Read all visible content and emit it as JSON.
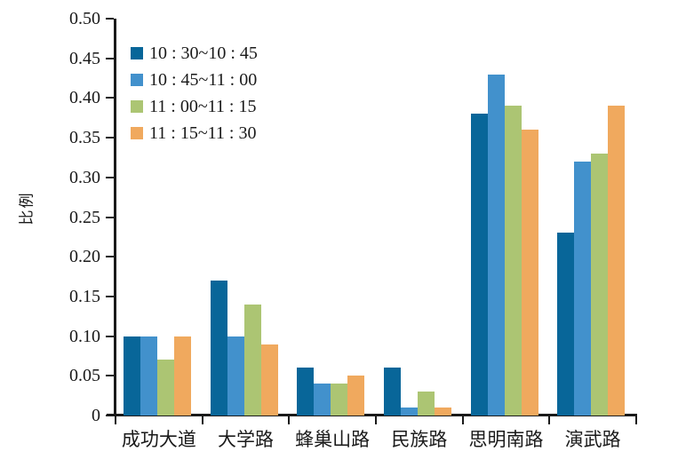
{
  "chart_data": {
    "type": "bar",
    "title": "",
    "xlabel": "",
    "ylabel": "比例",
    "categories": [
      "成功大道",
      "大学路",
      "蜂巢山路",
      "民族路",
      "思明南路",
      "演武路"
    ],
    "series": [
      {
        "name": "10 : 30~10 : 45",
        "color": "#086699",
        "values": [
          0.1,
          0.17,
          0.06,
          0.06,
          0.38,
          0.23
        ]
      },
      {
        "name": "10 : 45~11 : 00",
        "color": "#4291CC",
        "values": [
          0.1,
          0.1,
          0.04,
          0.01,
          0.43,
          0.32
        ]
      },
      {
        "name": "11 : 00~11 : 15",
        "color": "#ACC573",
        "values": [
          0.07,
          0.14,
          0.04,
          0.03,
          0.39,
          0.33
        ]
      },
      {
        "name": "11 : 15~11 : 30",
        "color": "#F0A95E",
        "values": [
          0.1,
          0.09,
          0.05,
          0.01,
          0.36,
          0.39
        ]
      }
    ],
    "ylim": [
      0,
      0.5
    ],
    "yticks": [
      0,
      0.05,
      0.1,
      0.15,
      0.2,
      0.25,
      0.3,
      0.35,
      0.4,
      0.45,
      0.5
    ],
    "ytick_labels": [
      "0",
      "0.05",
      "0.10",
      "0.15",
      "0.20",
      "0.25",
      "0.30",
      "0.35",
      "0.40",
      "0.45",
      "0.50"
    ],
    "grid": false,
    "legend_position": "top-left",
    "axis_color": "#1A1A1A",
    "text_color": "#1A1A1A",
    "background_color": "#FFFFFF"
  }
}
